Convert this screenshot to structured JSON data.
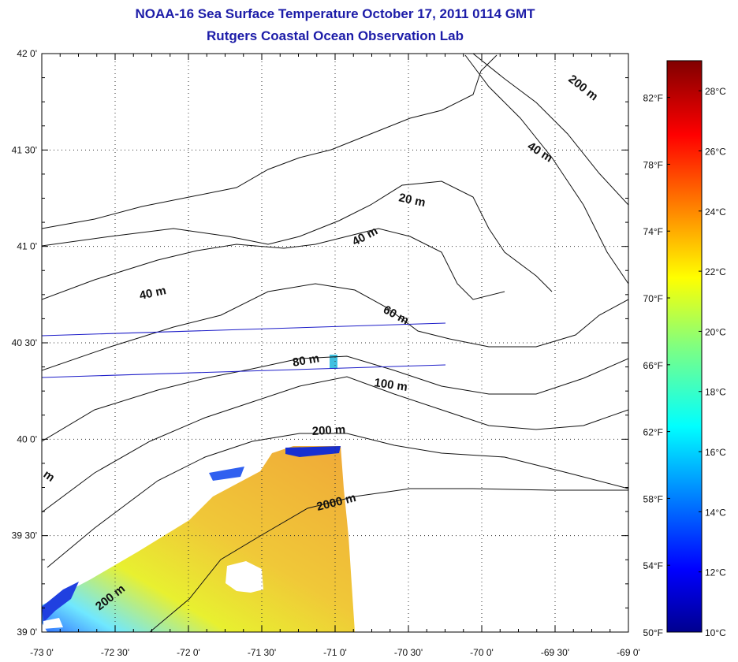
{
  "title": {
    "line1": "NOAA-16 Sea Surface Temperature October 17, 2011 0114 GMT",
    "line2": "Rutgers Coastal Ocean Observation Lab"
  },
  "map": {
    "lon_ticks": [
      "-73 0'",
      "-72 30'",
      "-72 0'",
      "-71 30'",
      "-71 0'",
      "-70 30'",
      "-70 0'",
      "-69 30'",
      "-69 0'"
    ],
    "lat_ticks": [
      "42 0'",
      "41 30'",
      "41 0'",
      "40 30'",
      "40 0'",
      "39 30'",
      "39 0'"
    ],
    "lon_range": [
      -73,
      -69
    ],
    "lat_range": [
      39,
      42
    ],
    "grid": "dotted",
    "contour_labels": [
      "200 m",
      "40 m",
      "20 m",
      "40 m",
      "40 m",
      "60 m",
      "80 m",
      "100 m",
      "200 m",
      "2000 m",
      "200 m",
      "m"
    ]
  },
  "colorbar": {
    "celsius_labels": [
      "28°C",
      "26°C",
      "24°C",
      "22°C",
      "20°C",
      "18°C",
      "16°C",
      "14°C",
      "12°C",
      "10°C"
    ],
    "fahrenheit_labels": [
      "82°F",
      "78°F",
      "74°F",
      "70°F",
      "66°F",
      "62°F",
      "58°F",
      "54°F",
      "50°F"
    ],
    "range_celsius": [
      10,
      29
    ],
    "colormap": "jet"
  }
}
